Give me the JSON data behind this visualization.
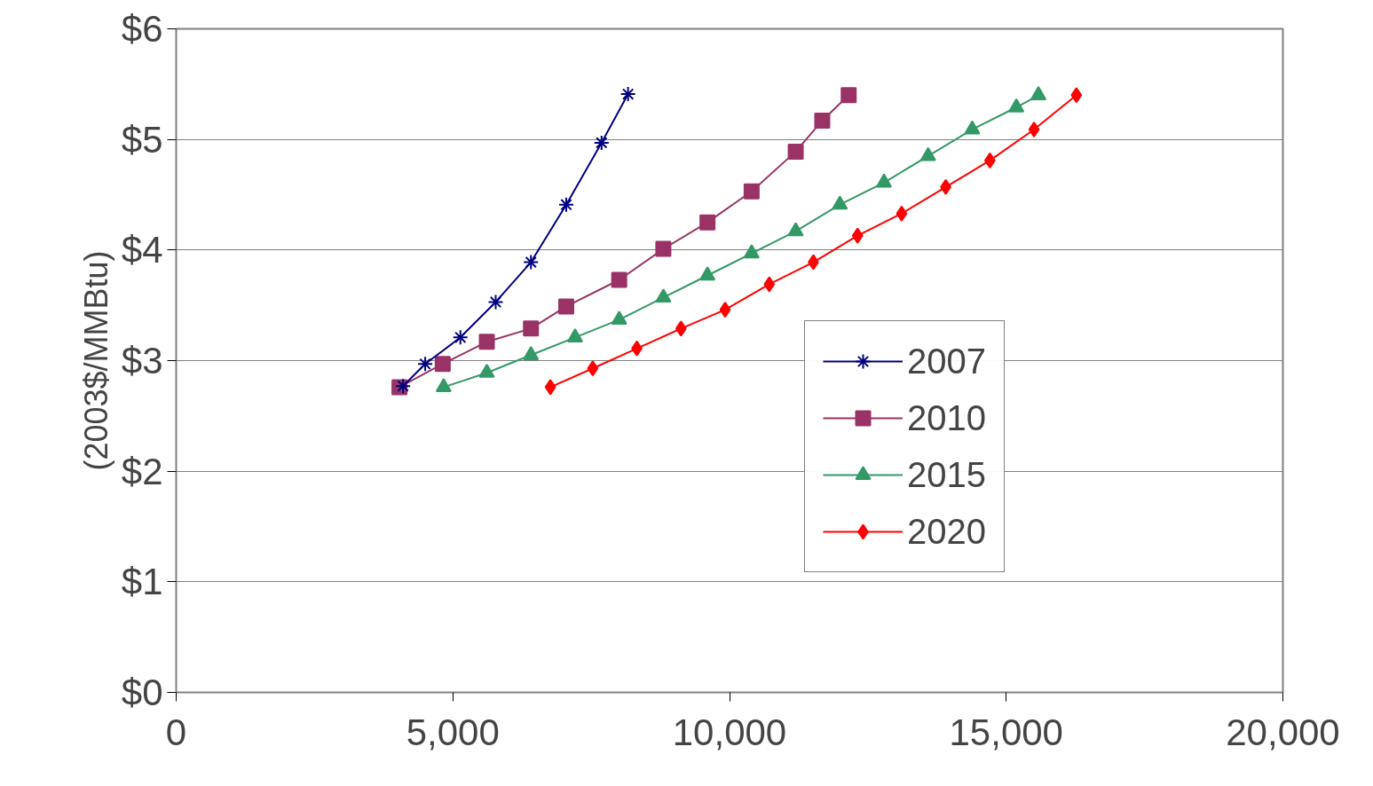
{
  "chart_data": {
    "type": "line",
    "ylabel": "(2003$/MMBtu)",
    "xlim": [
      0,
      20000
    ],
    "xticks": [
      {
        "value": 0,
        "label": "0"
      },
      {
        "value": 5000,
        "label": "5,000"
      },
      {
        "value": 10000,
        "label": "10,000"
      },
      {
        "value": 15000,
        "label": "15,000"
      },
      {
        "value": 20000,
        "label": "20,000"
      }
    ],
    "ylim": [
      0,
      6
    ],
    "yticks": [
      {
        "value": 0,
        "label": "$0"
      },
      {
        "value": 1,
        "label": "$1"
      },
      {
        "value": 2,
        "label": "$2"
      },
      {
        "value": 3,
        "label": "$3"
      },
      {
        "value": 4,
        "label": "$4"
      },
      {
        "value": 5,
        "label": "$5"
      },
      {
        "value": 6,
        "label": "$6"
      }
    ],
    "grid": "y",
    "legend": "center",
    "series": [
      {
        "name": "2007",
        "color": "#000080",
        "marker": "cross",
        "x": [
          4100,
          4500,
          5136,
          5774,
          6411,
          7049,
          7687,
          8166
        ],
        "values": [
          2.77,
          2.97,
          3.21,
          3.53,
          3.89,
          4.41,
          4.97,
          5.41
        ]
      },
      {
        "name": "2010",
        "color": "#993366",
        "marker": "square",
        "x": [
          4035,
          4817,
          5614,
          6411,
          7049,
          8006,
          8804,
          9601,
          10399,
          11196,
          11675,
          12153
        ],
        "values": [
          2.76,
          2.97,
          3.17,
          3.29,
          3.49,
          3.73,
          4.01,
          4.25,
          4.53,
          4.89,
          5.17,
          5.4
        ]
      },
      {
        "name": "2015",
        "color": "#339966",
        "marker": "triangle",
        "x": [
          4833,
          5614,
          6411,
          7209,
          8006,
          8804,
          9601,
          10399,
          11196,
          11994,
          12791,
          13589,
          14386,
          15183,
          15582
        ],
        "values": [
          2.76,
          2.89,
          3.05,
          3.21,
          3.37,
          3.57,
          3.77,
          3.97,
          4.17,
          4.41,
          4.61,
          4.85,
          5.09,
          5.29,
          5.4
        ]
      },
      {
        "name": "2020",
        "color": "#ff0000",
        "marker": "diamond",
        "x": [
          6762,
          7528,
          8325,
          9123,
          9920,
          10718,
          11515,
          12313,
          13110,
          13907,
          14705,
          15502,
          16268
        ],
        "values": [
          2.76,
          2.93,
          3.11,
          3.29,
          3.46,
          3.69,
          3.89,
          4.13,
          4.33,
          4.57,
          4.81,
          5.09,
          5.4
        ]
      }
    ]
  }
}
